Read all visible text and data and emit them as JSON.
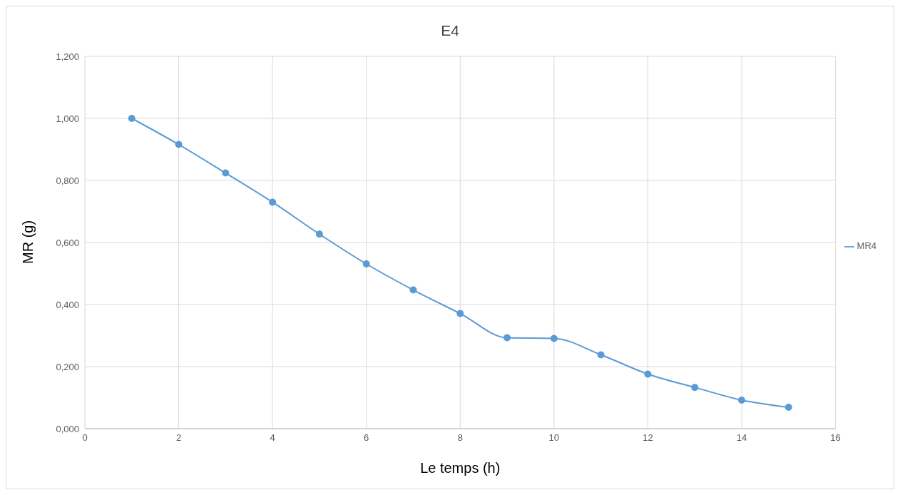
{
  "chart_data": {
    "type": "line",
    "title": "E4",
    "xlabel": "Le temps (h)",
    "ylabel": "MR (g)",
    "x": [
      1,
      2,
      3,
      4,
      5,
      6,
      7,
      8,
      9,
      10,
      11,
      12,
      13,
      14,
      15
    ],
    "series": [
      {
        "name": "MR4",
        "color": "#5b9bd5",
        "values": [
          1.0,
          0.916,
          0.824,
          0.73,
          0.627,
          0.531,
          0.447,
          0.371,
          0.293,
          0.291,
          0.238,
          0.176,
          0.133,
          0.092,
          0.069
        ]
      }
    ],
    "xlim": [
      0,
      16
    ],
    "xticks": [
      0,
      2,
      4,
      6,
      8,
      10,
      12,
      14,
      16
    ],
    "ylim": [
      0,
      1.2
    ],
    "yticks": [
      {
        "value": 0,
        "label": "0,000"
      },
      {
        "value": 0.2,
        "label": "0,200"
      },
      {
        "value": 0.4,
        "label": "0,400"
      },
      {
        "value": 0.6,
        "label": "0,600"
      },
      {
        "value": 0.8,
        "label": "0,800"
      },
      {
        "value": 1.0,
        "label": "1,000"
      },
      {
        "value": 1.2,
        "label": "1,200"
      }
    ],
    "grid": true,
    "legend": "right",
    "marker": "circle",
    "line_style": "solid"
  }
}
